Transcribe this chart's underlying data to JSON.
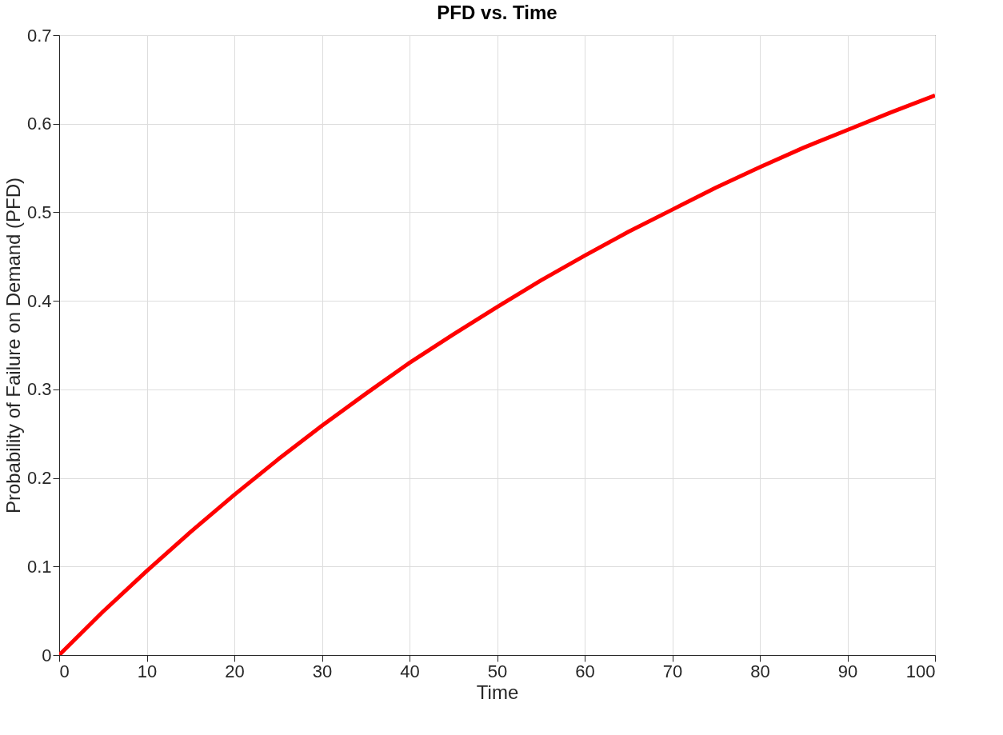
{
  "chart_data": {
    "type": "line",
    "title": "PFD vs. Time",
    "xlabel": "Time",
    "ylabel": "Probability of Failure on Demand (PFD)",
    "x": [
      0,
      5,
      10,
      15,
      20,
      25,
      30,
      35,
      40,
      45,
      50,
      55,
      60,
      65,
      70,
      75,
      80,
      85,
      90,
      95,
      100
    ],
    "series": [
      {
        "color": "#ff0000",
        "values": [
          0,
          0.049,
          0.095,
          0.139,
          0.181,
          0.221,
          0.259,
          0.295,
          0.33,
          0.362,
          0.393,
          0.423,
          0.451,
          0.478,
          0.503,
          0.528,
          0.551,
          0.573,
          0.593,
          0.613,
          0.632
        ]
      }
    ],
    "xlim": [
      0,
      100
    ],
    "ylim": [
      0,
      0.7
    ],
    "xticks": [
      0,
      10,
      20,
      30,
      40,
      50,
      60,
      70,
      80,
      90,
      100
    ],
    "yticks": [
      0,
      0.1,
      0.2,
      0.3,
      0.4,
      0.5,
      0.6,
      0.7
    ],
    "grid": true
  }
}
